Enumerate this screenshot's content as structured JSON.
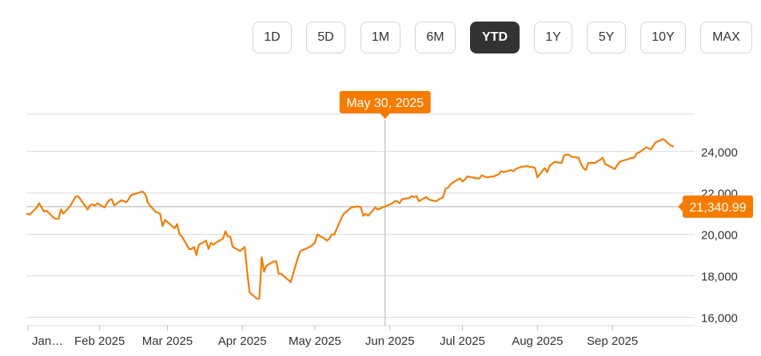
{
  "range_buttons": [
    {
      "label": "1D",
      "active": false
    },
    {
      "label": "5D",
      "active": false
    },
    {
      "label": "1M",
      "active": false
    },
    {
      "label": "6M",
      "active": false
    },
    {
      "label": "YTD",
      "active": true
    },
    {
      "label": "1Y",
      "active": false
    },
    {
      "label": "5Y",
      "active": false
    },
    {
      "label": "10Y",
      "active": false
    },
    {
      "label": "MAX",
      "active": false
    }
  ],
  "colors": {
    "line": "#f57c00",
    "grid": "#d9d9d9",
    "active_button": "#333333",
    "crosshair": "#c8c8c8",
    "text": "#333333"
  },
  "chart_data": {
    "type": "line",
    "title": "",
    "xlabel": "",
    "ylabel": "",
    "ylim": [
      15600,
      25800
    ],
    "y_ticks": [
      24000,
      22000,
      20000,
      18000,
      16000
    ],
    "y_tick_labels": [
      "24,000",
      "22,000",
      "20,000",
      "18,000",
      "16,000"
    ],
    "x_ticks": [
      "2025-01-01",
      "2025-02-01",
      "2025-03-01",
      "2025-04-01",
      "2025-05-01",
      "2025-06-01",
      "2025-07-01",
      "2025-08-01",
      "2025-09-01"
    ],
    "x_tick_labels": [
      "Jan…",
      "Feb 2025",
      "Mar 2025",
      "Apr 2025",
      "May 2025",
      "Jun 2025",
      "Jul 2025",
      "Aug 2025",
      "Sep 2025"
    ],
    "grid": true,
    "crosshair": {
      "label": "May 30, 2025",
      "date": "2025-05-30",
      "value": 21340.99
    },
    "last_value_label": "21,340.99",
    "series": [
      {
        "points": [
          [
            "2025-01-02",
            21000
          ],
          [
            "2025-01-03",
            20950
          ],
          [
            "2025-01-06",
            21300
          ],
          [
            "2025-01-07",
            21500
          ],
          [
            "2025-01-08",
            21300
          ],
          [
            "2025-01-09",
            21100
          ],
          [
            "2025-01-10",
            21150
          ],
          [
            "2025-01-13",
            20800
          ],
          [
            "2025-01-14",
            20750
          ],
          [
            "2025-01-15",
            20750
          ],
          [
            "2025-01-16",
            21200
          ],
          [
            "2025-01-17",
            21000
          ],
          [
            "2025-01-20",
            21400
          ],
          [
            "2025-01-21",
            21600
          ],
          [
            "2025-01-22",
            21800
          ],
          [
            "2025-01-23",
            21850
          ],
          [
            "2025-01-24",
            21700
          ],
          [
            "2025-01-27",
            21200
          ],
          [
            "2025-01-28",
            21400
          ],
          [
            "2025-01-29",
            21450
          ],
          [
            "2025-01-30",
            21400
          ],
          [
            "2025-01-31",
            21500
          ],
          [
            "2025-02-03",
            21300
          ],
          [
            "2025-02-04",
            21500
          ],
          [
            "2025-02-05",
            21650
          ],
          [
            "2025-02-06",
            21700
          ],
          [
            "2025-02-07",
            21400
          ],
          [
            "2025-02-10",
            21650
          ],
          [
            "2025-02-11",
            21600
          ],
          [
            "2025-02-12",
            21550
          ],
          [
            "2025-02-13",
            21700
          ],
          [
            "2025-02-14",
            21900
          ],
          [
            "2025-02-17",
            22000
          ],
          [
            "2025-02-18",
            22050
          ],
          [
            "2025-02-19",
            22050
          ],
          [
            "2025-02-20",
            21900
          ],
          [
            "2025-02-21",
            21500
          ],
          [
            "2025-02-24",
            21100
          ],
          [
            "2025-02-25",
            21050
          ],
          [
            "2025-02-26",
            21000
          ],
          [
            "2025-02-27",
            20400
          ],
          [
            "2025-02-28",
            20700
          ],
          [
            "2025-03-03",
            20400
          ],
          [
            "2025-03-04",
            20300
          ],
          [
            "2025-03-05",
            20500
          ],
          [
            "2025-03-06",
            20000
          ],
          [
            "2025-03-07",
            19900
          ],
          [
            "2025-03-10",
            19300
          ],
          [
            "2025-03-11",
            19300
          ],
          [
            "2025-03-12",
            19400
          ],
          [
            "2025-03-13",
            19000
          ],
          [
            "2025-03-14",
            19500
          ],
          [
            "2025-03-17",
            19700
          ],
          [
            "2025-03-18",
            19300
          ],
          [
            "2025-03-19",
            19600
          ],
          [
            "2025-03-20",
            19500
          ],
          [
            "2025-03-21",
            19600
          ],
          [
            "2025-03-24",
            19800
          ],
          [
            "2025-03-25",
            20150
          ],
          [
            "2025-03-26",
            19900
          ],
          [
            "2025-03-27",
            19900
          ],
          [
            "2025-03-28",
            19400
          ],
          [
            "2025-03-31",
            19200
          ],
          [
            "2025-04-01",
            19300
          ],
          [
            "2025-04-02",
            19400
          ],
          [
            "2025-04-03",
            18200
          ],
          [
            "2025-04-04",
            17200
          ],
          [
            "2025-04-07",
            16900
          ],
          [
            "2025-04-08",
            16900
          ],
          [
            "2025-04-09",
            18900
          ],
          [
            "2025-04-10",
            18200
          ],
          [
            "2025-04-11",
            18500
          ],
          [
            "2025-04-14",
            18700
          ],
          [
            "2025-04-15",
            18700
          ],
          [
            "2025-04-16",
            18100
          ],
          [
            "2025-04-17",
            18100
          ],
          [
            "2025-04-21",
            17700
          ],
          [
            "2025-04-22",
            18100
          ],
          [
            "2025-04-23",
            18500
          ],
          [
            "2025-04-24",
            18900
          ],
          [
            "2025-04-25",
            19200
          ],
          [
            "2025-04-28",
            19350
          ],
          [
            "2025-04-29",
            19400
          ],
          [
            "2025-04-30",
            19500
          ],
          [
            "2025-05-01",
            19600
          ],
          [
            "2025-05-02",
            20000
          ],
          [
            "2025-05-05",
            19800
          ],
          [
            "2025-05-06",
            19700
          ],
          [
            "2025-05-07",
            19800
          ],
          [
            "2025-05-08",
            20000
          ],
          [
            "2025-05-09",
            20000
          ],
          [
            "2025-05-12",
            20800
          ],
          [
            "2025-05-13",
            21000
          ],
          [
            "2025-05-14",
            21100
          ],
          [
            "2025-05-15",
            21200
          ],
          [
            "2025-05-16",
            21300
          ],
          [
            "2025-05-19",
            21350
          ],
          [
            "2025-05-20",
            21300
          ],
          [
            "2025-05-21",
            20900
          ],
          [
            "2025-05-22",
            21000
          ],
          [
            "2025-05-23",
            20900
          ],
          [
            "2025-05-26",
            21300
          ],
          [
            "2025-05-27",
            21200
          ],
          [
            "2025-05-28",
            21250
          ],
          [
            "2025-05-29",
            21300
          ],
          [
            "2025-05-30",
            21341
          ],
          [
            "2025-06-02",
            21500
          ],
          [
            "2025-06-03",
            21600
          ],
          [
            "2025-06-04",
            21600
          ],
          [
            "2025-06-05",
            21500
          ],
          [
            "2025-06-06",
            21700
          ],
          [
            "2025-06-09",
            21750
          ],
          [
            "2025-06-10",
            21850
          ],
          [
            "2025-06-11",
            21800
          ],
          [
            "2025-06-12",
            21850
          ],
          [
            "2025-06-13",
            21600
          ],
          [
            "2025-06-16",
            21800
          ],
          [
            "2025-06-17",
            21700
          ],
          [
            "2025-06-18",
            21650
          ],
          [
            "2025-06-20",
            21600
          ],
          [
            "2025-06-23",
            21800
          ],
          [
            "2025-06-24",
            22200
          ],
          [
            "2025-06-25",
            22250
          ],
          [
            "2025-06-26",
            22400
          ],
          [
            "2025-06-27",
            22500
          ],
          [
            "2025-06-30",
            22700
          ],
          [
            "2025-07-01",
            22550
          ],
          [
            "2025-07-02",
            22650
          ],
          [
            "2025-07-03",
            22800
          ],
          [
            "2025-07-07",
            22700
          ],
          [
            "2025-07-08",
            22700
          ],
          [
            "2025-07-09",
            22850
          ],
          [
            "2025-07-10",
            22800
          ],
          [
            "2025-07-11",
            22750
          ],
          [
            "2025-07-14",
            22800
          ],
          [
            "2025-07-15",
            22850
          ],
          [
            "2025-07-16",
            22900
          ],
          [
            "2025-07-17",
            23050
          ],
          [
            "2025-07-18",
            23000
          ],
          [
            "2025-07-21",
            23100
          ],
          [
            "2025-07-22",
            23050
          ],
          [
            "2025-07-23",
            23150
          ],
          [
            "2025-07-24",
            23200
          ],
          [
            "2025-07-25",
            23250
          ],
          [
            "2025-07-28",
            23300
          ],
          [
            "2025-07-29",
            23250
          ],
          [
            "2025-07-30",
            23250
          ],
          [
            "2025-07-31",
            23200
          ],
          [
            "2025-08-01",
            22750
          ],
          [
            "2025-08-04",
            23200
          ],
          [
            "2025-08-05",
            23000
          ],
          [
            "2025-08-06",
            23300
          ],
          [
            "2025-08-07",
            23400
          ],
          [
            "2025-08-08",
            23500
          ],
          [
            "2025-08-11",
            23450
          ],
          [
            "2025-08-12",
            23800
          ],
          [
            "2025-08-13",
            23850
          ],
          [
            "2025-08-14",
            23850
          ],
          [
            "2025-08-15",
            23750
          ],
          [
            "2025-08-18",
            23700
          ],
          [
            "2025-08-19",
            23400
          ],
          [
            "2025-08-20",
            23200
          ],
          [
            "2025-08-21",
            23100
          ],
          [
            "2025-08-22",
            23450
          ],
          [
            "2025-08-25",
            23450
          ],
          [
            "2025-08-26",
            23550
          ],
          [
            "2025-08-27",
            23600
          ],
          [
            "2025-08-28",
            23700
          ],
          [
            "2025-08-29",
            23400
          ],
          [
            "2025-09-02",
            23150
          ],
          [
            "2025-09-03",
            23350
          ],
          [
            "2025-09-04",
            23500
          ],
          [
            "2025-09-05",
            23550
          ],
          [
            "2025-09-08",
            23650
          ],
          [
            "2025-09-09",
            23700
          ],
          [
            "2025-09-10",
            23700
          ],
          [
            "2025-09-11",
            23900
          ],
          [
            "2025-09-12",
            23950
          ],
          [
            "2025-09-15",
            24200
          ],
          [
            "2025-09-16",
            24150
          ],
          [
            "2025-09-17",
            24100
          ],
          [
            "2025-09-18",
            24300
          ],
          [
            "2025-09-19",
            24450
          ],
          [
            "2025-09-22",
            24600
          ],
          [
            "2025-09-23",
            24500
          ],
          [
            "2025-09-24",
            24400
          ],
          [
            "2025-09-25",
            24300
          ],
          [
            "2025-09-26",
            24250
          ]
        ]
      }
    ]
  }
}
